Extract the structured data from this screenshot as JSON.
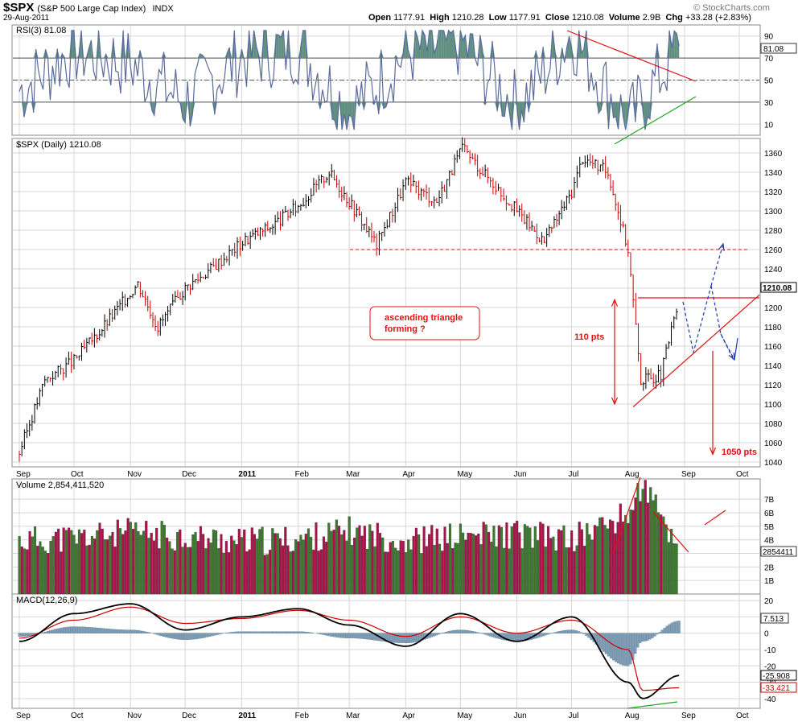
{
  "header": {
    "symbol": "$SPX",
    "name": "(S&P 500 Large Cap Index)",
    "exchange": "INDX",
    "date": "29-Aug-2011",
    "open_label": "Open",
    "open": "1177.91",
    "high_label": "High",
    "high": "1210.28",
    "low_label": "Low",
    "low": "1177.91",
    "close_label": "Close",
    "close": "1210.08",
    "volume_label": "Volume",
    "volume": "2.9B",
    "chg_label": "Chg",
    "chg": "+33.28 (+2.83%)",
    "brand": "© StockCharts.com"
  },
  "x_axis": {
    "months": [
      "Sep",
      "Oct",
      "Nov",
      "Dec",
      "2011",
      "Feb",
      "Mar",
      "Apr",
      "May",
      "Jun",
      "Jul",
      "Aug",
      "Sep",
      "Oct"
    ]
  },
  "colors": {
    "up": "#000000",
    "down": "#cc0000",
    "vol_up": "#3c7a2d",
    "vol_down": "#b0104a",
    "rsi_fill": "#5f8f80",
    "grid": "#d6d6d6",
    "annot_red": "#e01010",
    "annot_blue": "#1f3aa8",
    "annot_green": "#1fa81f"
  },
  "chart_data": [
    {
      "type": "line",
      "title": "RSI(3) 81.08",
      "indicator": "RSI",
      "period": 3,
      "last_value": "81.08",
      "ylim": [
        0,
        100
      ],
      "y_ticks": [
        "10",
        "30",
        "50",
        "70",
        "90"
      ],
      "levels": [
        30,
        50,
        70
      ],
      "x": [
        "2010-09-01",
        "2010-10-01",
        "2010-11-01",
        "2010-12-01",
        "2011-01-01",
        "2011-02-01",
        "2011-03-01",
        "2011-04-01",
        "2011-05-01",
        "2011-06-01",
        "2011-07-01",
        "2011-08-01",
        "2011-08-29"
      ],
      "values": [
        40,
        78,
        65,
        30,
        72,
        80,
        20,
        75,
        85,
        25,
        92,
        10,
        81.08
      ]
    },
    {
      "type": "candlestick",
      "title": "$SPX (Daily) 1210.08",
      "last_value": "1210.08",
      "ylim": [
        1035,
        1375
      ],
      "y_ticks": [
        "1040",
        "1060",
        "1080",
        "1100",
        "1120",
        "1140",
        "1160",
        "1180",
        "1200",
        "1220",
        "1240",
        "1260",
        "1280",
        "1300",
        "1320",
        "1340",
        "1360"
      ],
      "x": [
        "2010-09-01",
        "2010-09-15",
        "2010-10-01",
        "2010-10-15",
        "2010-11-05",
        "2010-11-16",
        "2010-12-01",
        "2010-12-15",
        "2011-01-03",
        "2011-01-18",
        "2011-02-01",
        "2011-02-18",
        "2011-03-01",
        "2011-03-16",
        "2011-04-01",
        "2011-04-18",
        "2011-05-02",
        "2011-05-16",
        "2011-06-01",
        "2011-06-16",
        "2011-07-01",
        "2011-07-07",
        "2011-07-21",
        "2011-08-01",
        "2011-08-08",
        "2011-08-19",
        "2011-08-29"
      ],
      "close": [
        1050,
        1125,
        1145,
        1175,
        1225,
        1180,
        1220,
        1240,
        1270,
        1285,
        1305,
        1340,
        1310,
        1265,
        1330,
        1310,
        1365,
        1335,
        1300,
        1268,
        1320,
        1355,
        1340,
        1260,
        1125,
        1130,
        1210.08
      ],
      "annotations": {
        "support_level": 1260,
        "triangle_top": 1210,
        "triangle_text": "ascending triangle\nforming ?",
        "height_label": "110 pts",
        "target_label": "1050 pts",
        "target": 1050
      }
    },
    {
      "type": "bar",
      "title": "Volume 2,854,411,520",
      "last_value": "2854411",
      "ylim": [
        0,
        8.5
      ],
      "unit": "B",
      "y_ticks": [
        "1B",
        "2B",
        "3B",
        "4B",
        "5B",
        "6B",
        "7B"
      ],
      "x": [
        "2010-09-01",
        "2010-10-01",
        "2010-11-01",
        "2010-12-01",
        "2011-01-01",
        "2011-02-01",
        "2011-03-01",
        "2011-04-01",
        "2011-05-01",
        "2011-06-01",
        "2011-07-01",
        "2011-08-01",
        "2011-08-09",
        "2011-08-29"
      ],
      "values": [
        3.6,
        3.8,
        4.2,
        3.9,
        3.5,
        3.7,
        4.3,
        3.6,
        3.9,
        4.1,
        3.7,
        5.5,
        7.8,
        2.85
      ]
    },
    {
      "type": "line",
      "title": "MACD(12,26,9)",
      "indicator": "MACD",
      "params": "12,26,9",
      "macd_value": "-25.908",
      "signal_value": "-33.421",
      "hist_value": "7.513",
      "ylim": [
        -46,
        24
      ],
      "y_ticks": [
        "-40",
        "-30",
        "-20",
        "-10",
        "0",
        "10",
        "20"
      ],
      "series": [
        {
          "name": "MACD",
          "values": [
            -5,
            12,
            18,
            2,
            10,
            15,
            5,
            -8,
            12,
            -5,
            10,
            -30,
            -40,
            -25.908
          ]
        },
        {
          "name": "Signal",
          "values": [
            -3,
            8,
            16,
            6,
            9,
            14,
            8,
            -2,
            10,
            0,
            8,
            -10,
            -35,
            -33.421
          ]
        },
        {
          "name": "Histogram",
          "values": [
            -2,
            4,
            2,
            -4,
            1,
            1,
            -3,
            -6,
            2,
            -5,
            2,
            -20,
            -5,
            7.513
          ]
        }
      ]
    }
  ]
}
